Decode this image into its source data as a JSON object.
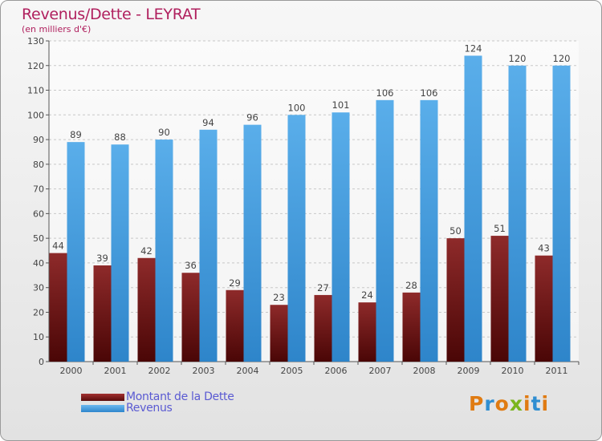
{
  "title": "Revenus/Dette - LEYRAT",
  "subtitle": "(en milliers d'€)",
  "logo": {
    "text": "Proxiti",
    "colors": [
      "#e07b12",
      "#2f8ed1",
      "#e07b12",
      "#7ab51d",
      "#e07b12",
      "#2f8ed1",
      "#e07b12"
    ]
  },
  "chart_data": {
    "type": "bar",
    "categories": [
      "2000",
      "2001",
      "2002",
      "2003",
      "2004",
      "2005",
      "2006",
      "2007",
      "2008",
      "2009",
      "2010",
      "2011"
    ],
    "series": [
      {
        "name": "Montant de la Dette",
        "color": "#8b2525",
        "values": [
          44,
          39,
          42,
          36,
          29,
          23,
          27,
          24,
          28,
          50,
          51,
          43
        ]
      },
      {
        "name": "Revenus",
        "color": "#4ba3e3",
        "values": [
          89,
          88,
          90,
          94,
          96,
          100,
          101,
          106,
          106,
          124,
          120,
          120
        ]
      }
    ],
    "y_ticks": [
      "0",
      "10",
      "20",
      "30",
      "40",
      "50",
      "60",
      "70",
      "80",
      "90",
      "100",
      "110",
      "120",
      "130"
    ],
    "ylim": [
      0,
      130
    ],
    "grid": "horizontal dashed",
    "legend_position": "bottom-left"
  }
}
